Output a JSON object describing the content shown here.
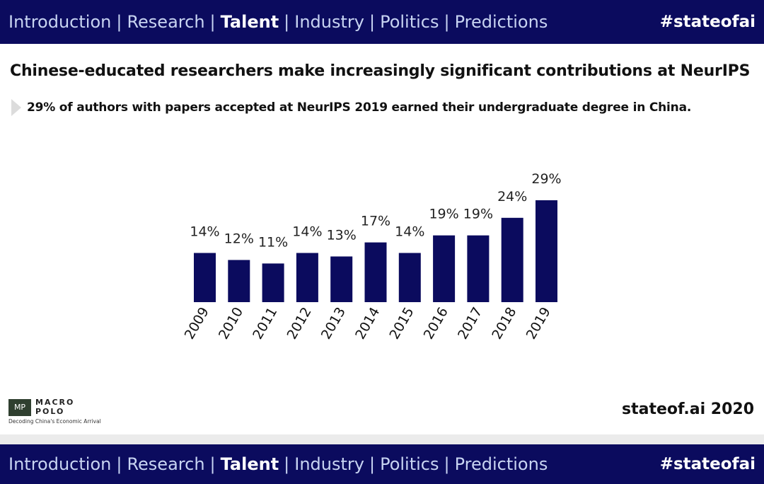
{
  "nav": {
    "items": [
      {
        "label": "Introduction",
        "active": false
      },
      {
        "label": "Research",
        "active": false
      },
      {
        "label": "Talent",
        "active": true
      },
      {
        "label": "Industry",
        "active": false
      },
      {
        "label": "Politics",
        "active": false
      },
      {
        "label": "Predictions",
        "active": false
      }
    ],
    "separator": "|",
    "hashtag": "#stateofai"
  },
  "slide": {
    "title": "Chinese-educated researchers make increasingly significant contributions at NeurIPS",
    "subtitle": "29% of authors with papers accepted at NeurIPS 2019 earned their undergraduate degree in China.",
    "credit": "stateof.ai 2020"
  },
  "logo": {
    "name_line1": "MACRO",
    "name_line2": "POLO",
    "tagline": "Decoding China's Economic Arrival"
  },
  "colors": {
    "navy": "#0b0b5e",
    "nav_text": "#c8d4f2"
  },
  "chart_data": {
    "type": "bar",
    "categories": [
      "2009",
      "2010",
      "2011",
      "2012",
      "2013",
      "2014",
      "2015",
      "2016",
      "2017",
      "2018",
      "2019"
    ],
    "values": [
      14,
      12,
      11,
      14,
      13,
      17,
      14,
      19,
      19,
      24,
      29
    ],
    "value_labels": [
      "14%",
      "12%",
      "11%",
      "14%",
      "13%",
      "17%",
      "14%",
      "19%",
      "19%",
      "24%",
      "29%"
    ],
    "unit": "%",
    "ylim": [
      0,
      29
    ],
    "grid": false,
    "legend": false,
    "xlabel": "",
    "ylabel": ""
  }
}
